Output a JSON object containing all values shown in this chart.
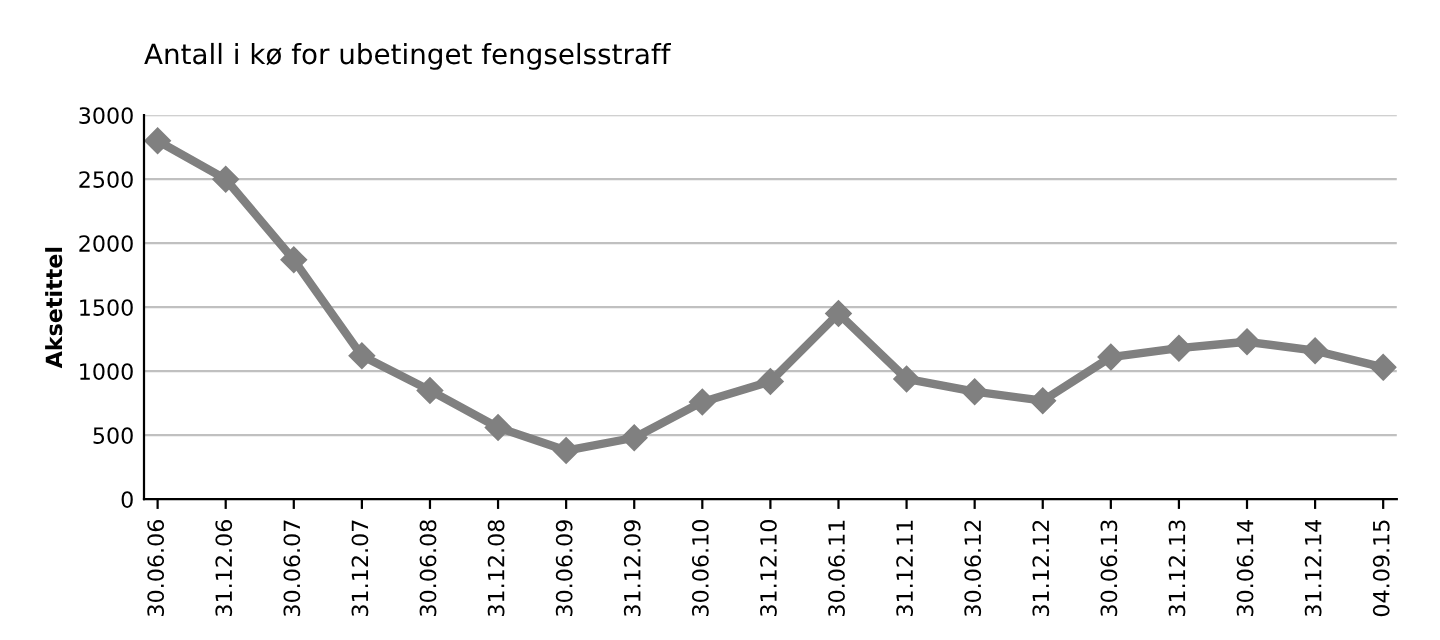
{
  "chart_data": {
    "type": "line",
    "title": "Antall i kø for ubetinget fengselsstraff",
    "ylabel": "Aksetittel",
    "categories": [
      "30.06.06",
      "31.12.06",
      "30.06.07",
      "31.12.07",
      "30.06.08",
      "31.12.08",
      "30.06.09",
      "31.12.09",
      "30.06.10",
      "31.12.10",
      "30.06.11",
      "31.12.11",
      "30.06.12",
      "31.12.12",
      "30.06.13",
      "31.12.13",
      "30.06.14",
      "31.12.14",
      "04.09.15"
    ],
    "series": [
      {
        "color": "#808080",
        "values": [
          2800,
          2500,
          1870,
          1120,
          850,
          560,
          380,
          480,
          760,
          920,
          1450,
          940,
          840,
          770,
          1110,
          1180,
          1230,
          1160,
          1030
        ]
      }
    ],
    "ylim": [
      0,
      3000
    ],
    "yticks": [
      0,
      500,
      1000,
      1500,
      2000,
      2500,
      3000
    ],
    "grid": "y",
    "marker": "diamond",
    "line_style": "solid",
    "legend": false
  }
}
